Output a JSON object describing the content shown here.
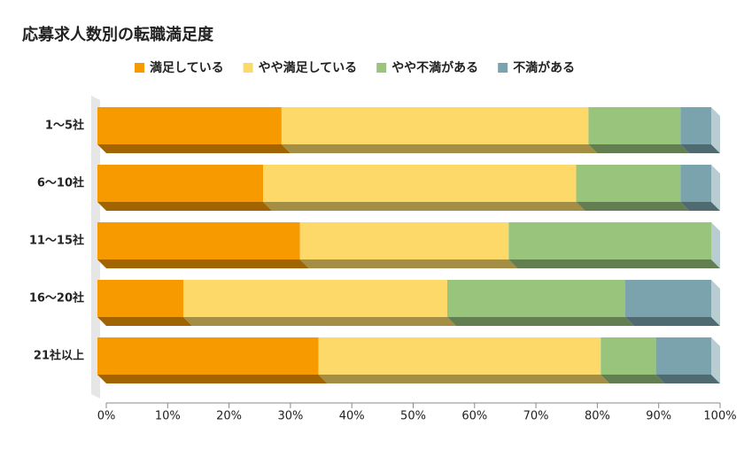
{
  "chart_data": {
    "type": "bar",
    "orientation": "horizontal",
    "stacked": true,
    "title": "応募求人数別の転職満足度",
    "categories": [
      "1〜5社",
      "6〜10社",
      "11〜15社",
      "16〜20社",
      "21社以上"
    ],
    "series": [
      {
        "name": "満足している",
        "color": "#f79a00",
        "values": [
          30,
          27,
          33,
          14,
          36
        ]
      },
      {
        "name": "やや満足している",
        "color": "#fdd96a",
        "values": [
          50,
          51,
          34,
          43,
          46
        ]
      },
      {
        "name": "やや不満がある",
        "color": "#98c47c",
        "values": [
          15,
          17,
          33,
          29,
          9
        ]
      },
      {
        "name": "不満がある",
        "color": "#7aa3ad",
        "values": [
          5,
          5,
          0,
          14,
          9
        ]
      }
    ],
    "xlim": [
      0,
      100
    ],
    "xticks": [
      {
        "value": 0,
        "label": "0%"
      },
      {
        "value": 10,
        "label": "10%"
      },
      {
        "value": 20,
        "label": "20%"
      },
      {
        "value": 30,
        "label": "30%"
      },
      {
        "value": 40,
        "label": "40%"
      },
      {
        "value": 50,
        "label": "50%"
      },
      {
        "value": 60,
        "label": "60%"
      },
      {
        "value": 70,
        "label": "70%"
      },
      {
        "value": 80,
        "label": "80%"
      },
      {
        "value": 90,
        "label": "90%"
      },
      {
        "value": 100,
        "label": "100%"
      }
    ],
    "legend": "top"
  }
}
